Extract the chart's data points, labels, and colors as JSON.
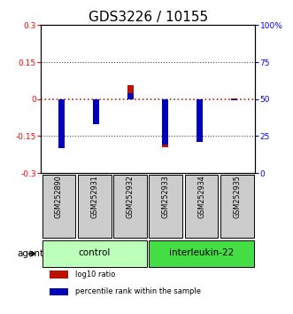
{
  "title": "GDS3226 / 10155",
  "samples": [
    "GSM252890",
    "GSM252931",
    "GSM252932",
    "GSM252933",
    "GSM252934",
    "GSM252935"
  ],
  "log10_ratio": [
    -0.085,
    -0.03,
    0.055,
    -0.195,
    -0.105,
    0.003
  ],
  "percentile_rank_raw": [
    17,
    33,
    54,
    19,
    21,
    49
  ],
  "ylim_left": [
    -0.3,
    0.3
  ],
  "ylim_right": [
    0,
    100
  ],
  "yticks_left": [
    -0.3,
    -0.15,
    0,
    0.15,
    0.3
  ],
  "yticks_right": [
    0,
    25,
    50,
    75,
    100
  ],
  "ytick_labels_left": [
    "-0.3",
    "-0.15",
    "0",
    "0.15",
    "0.3"
  ],
  "ytick_labels_right": [
    "0",
    "25",
    "50",
    "75",
    "100%"
  ],
  "groups": [
    {
      "label": "control",
      "indices": [
        0,
        1,
        2
      ],
      "color": "#bbffbb"
    },
    {
      "label": "interleukin-22",
      "indices": [
        3,
        4,
        5
      ],
      "color": "#44dd44"
    }
  ],
  "red_bar_width": 0.18,
  "blue_bar_width": 0.18,
  "log10_color": "#bb1100",
  "percentile_color": "#0000bb",
  "agent_label": "agent",
  "legend_items": [
    {
      "label": "log10 ratio",
      "color": "#bb1100"
    },
    {
      "label": "percentile rank within the sample",
      "color": "#0000bb"
    }
  ],
  "zero_line_color": "#cc2200",
  "dot_grid_color": "#444444",
  "bar_plot_bg": "#ffffff",
  "sample_box_bg": "#cccccc",
  "title_fontsize": 11,
  "tick_fontsize": 6.5,
  "label_fontsize": 7.5
}
